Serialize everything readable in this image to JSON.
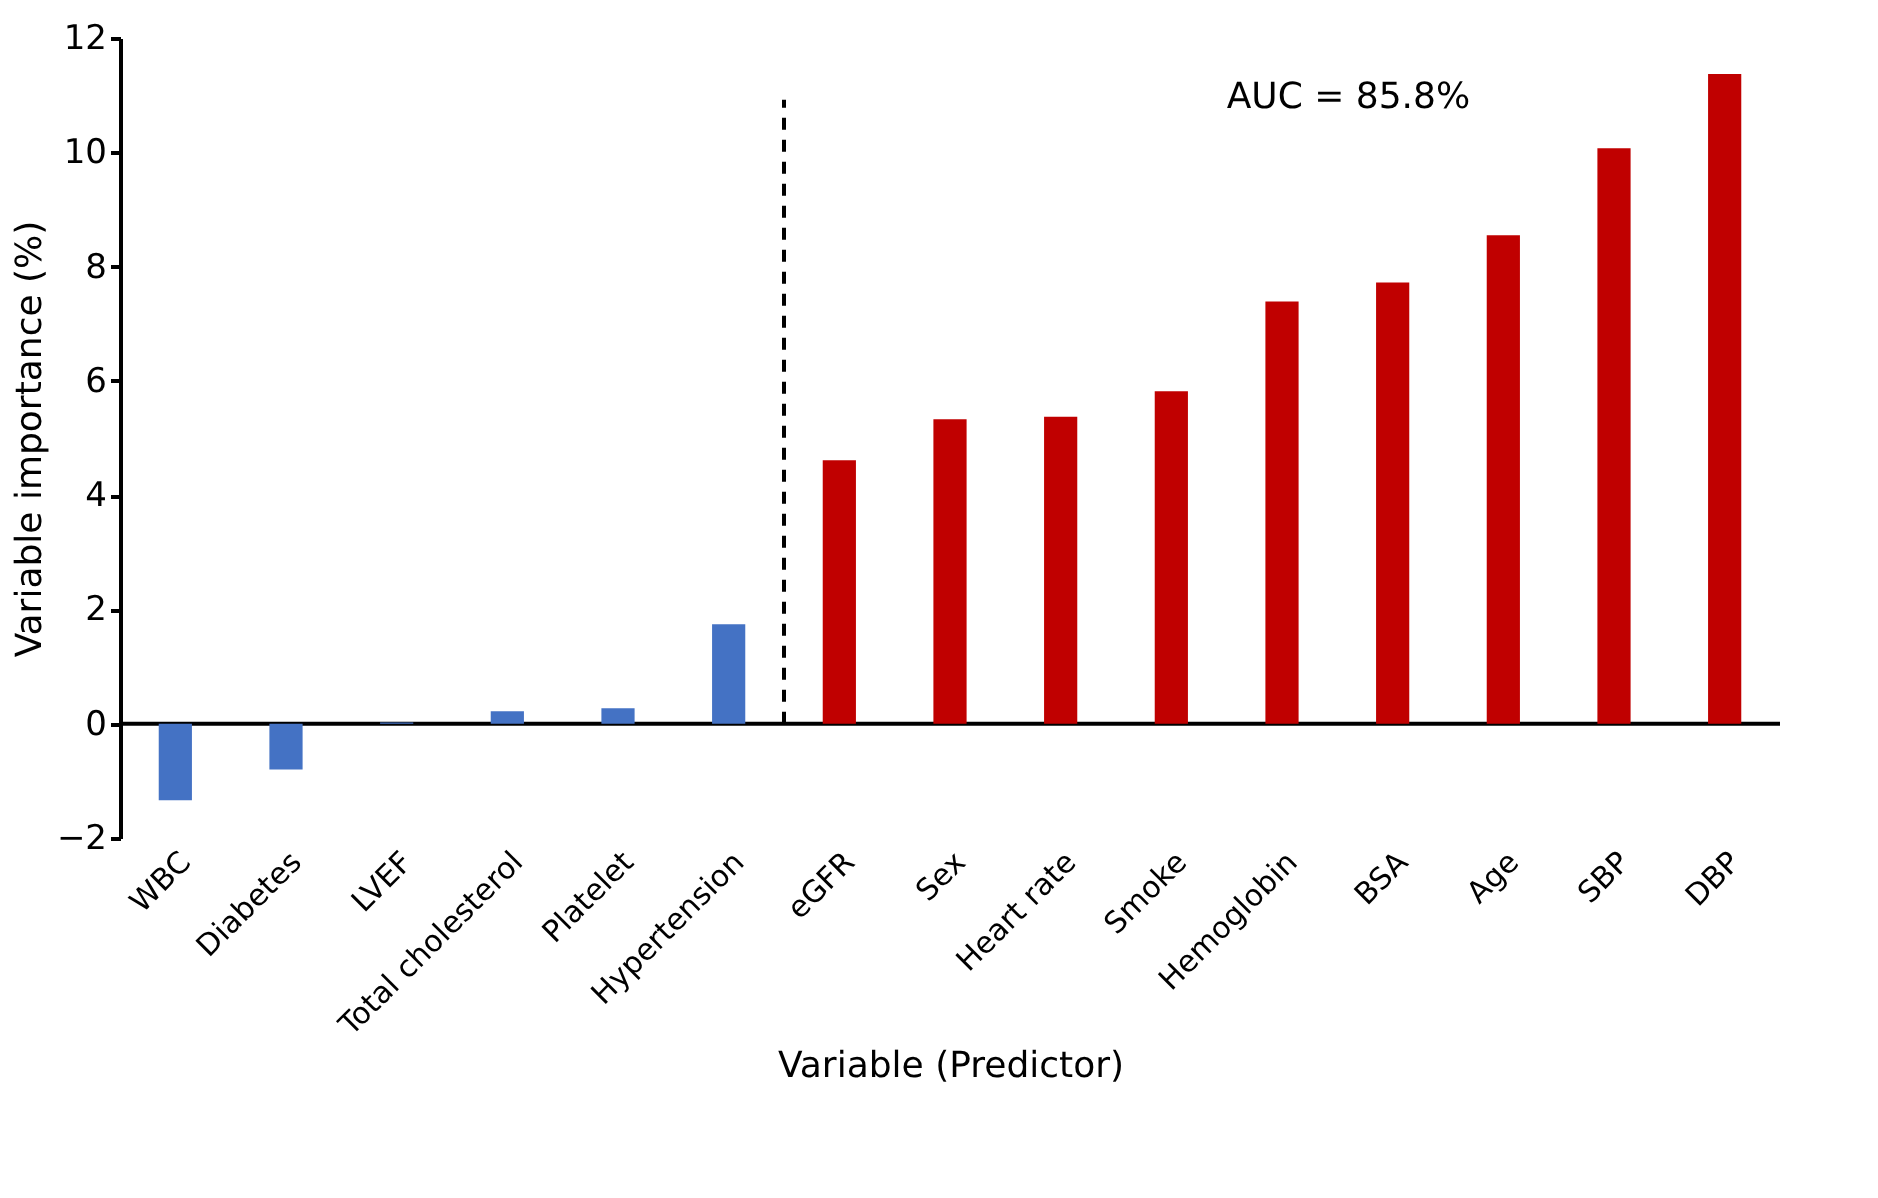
{
  "chart_data": {
    "type": "bar",
    "xlabel": "Variable (Predictor)",
    "ylabel": "Variable importance (%)",
    "categories": [
      "WBC",
      "Diabetes",
      "LVEF",
      "Total cholesterol",
      "Platelet",
      "Hypertension",
      "eGFR",
      "Sex",
      "Heart rate",
      "Smoke",
      "Hemoglobin",
      "BSA",
      "Age",
      "SBP",
      "DBP"
    ],
    "values": [
      -1.34,
      -0.8,
      0.02,
      0.22,
      0.27,
      1.74,
      4.61,
      5.33,
      5.37,
      5.82,
      7.39,
      7.72,
      8.55,
      10.07,
      11.37
    ],
    "colors": [
      "#4472c4",
      "#4472c4",
      "#4472c4",
      "#4472c4",
      "#4472c4",
      "#4472c4",
      "#c00000",
      "#c00000",
      "#c00000",
      "#c00000",
      "#c00000",
      "#c00000",
      "#c00000",
      "#c00000",
      "#c00000"
    ],
    "ylim": [
      -2,
      12
    ],
    "yticks": [
      -2,
      0,
      2,
      4,
      6,
      8,
      10,
      12
    ],
    "ref_lines": [
      {
        "axis": "x",
        "value": "eGFR",
        "line_style": "dashed",
        "color": "#000000"
      },
      {
        "axis": "y",
        "value": 0,
        "line_style": "solid",
        "color": "#000000"
      }
    ],
    "annotations": [
      "AUC = 85.8%"
    ],
    "grid": false
  }
}
